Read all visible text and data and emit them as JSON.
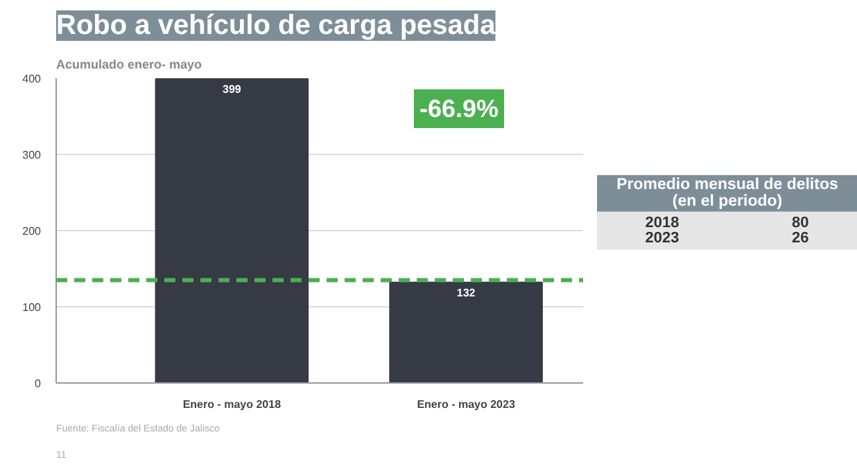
{
  "chart_data": [
    {
      "type": "bar",
      "title": "Robo a vehículo de carga pesada",
      "subtitle": "Acumulado enero- mayo",
      "categories": [
        "Enero - mayo 2018",
        "Enero - mayo 2023"
      ],
      "values": [
        399,
        132
      ],
      "color": "#353a45",
      "data_labels": true,
      "ylim": [
        0,
        400
      ],
      "yticks": [
        0,
        100,
        200,
        300,
        400
      ],
      "grid": "y",
      "ref_lines": [
        {
          "axis": "y",
          "value": 135,
          "color": "#4caf50",
          "line_style": "dashed"
        }
      ],
      "annotations": [
        "-66.9%",
        "Fuente: Fiscalía del Estado de Jalisco",
        "11"
      ]
    },
    {
      "type": "other",
      "title": "Promedio mensual de delitos (en el periodo)",
      "categories": [
        "2018",
        "2023"
      ],
      "values": [
        80,
        26
      ],
      "data_labels": true
    }
  ]
}
